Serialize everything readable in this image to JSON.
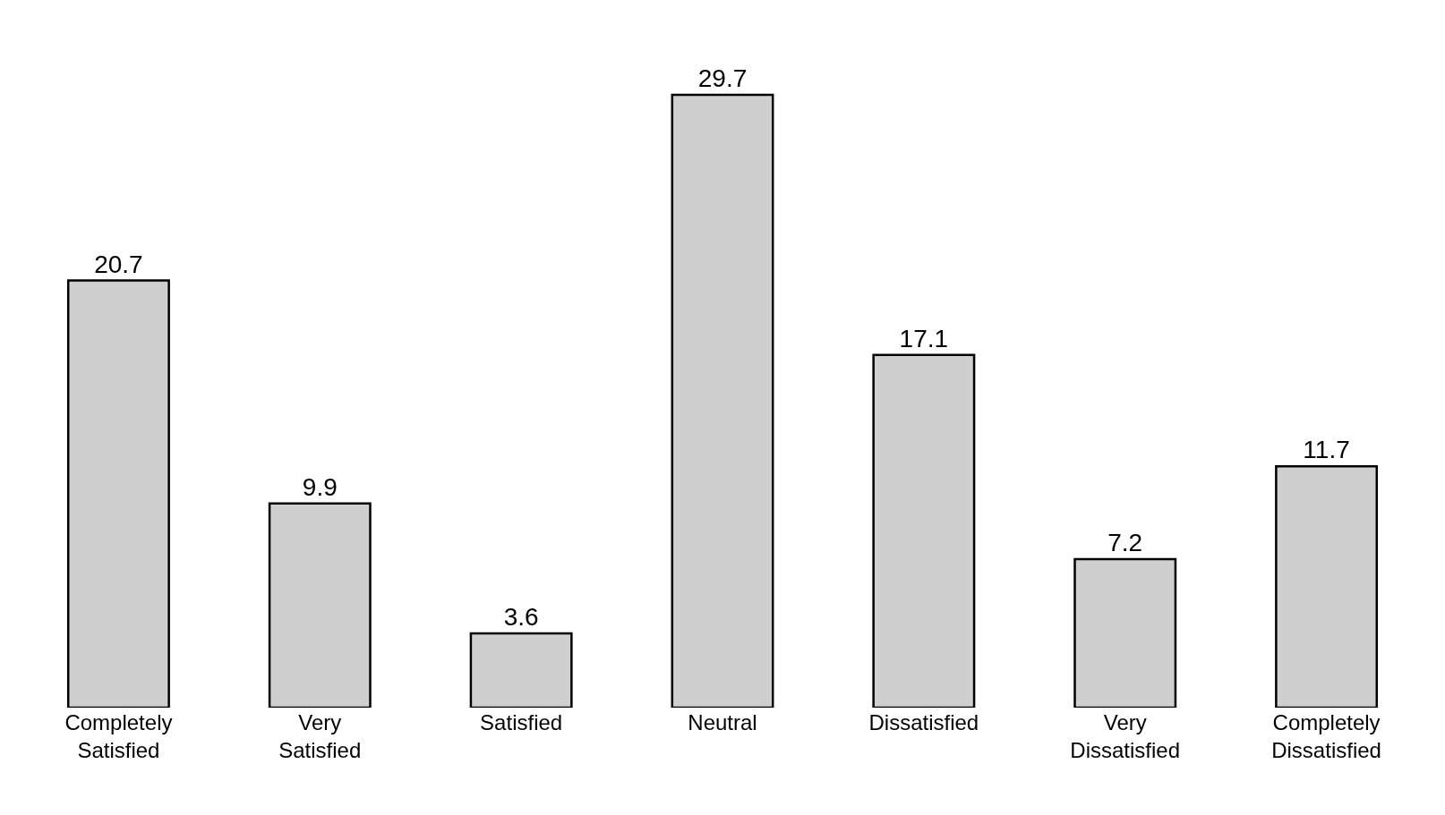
{
  "chart_data": {
    "type": "bar",
    "categories": [
      "Completely Satisfied",
      "Very Satisfied",
      "Satisfied",
      "Neutral",
      "Dissatisfied",
      "Very Dissatisfied",
      "Completely Dissatisfied"
    ],
    "values": [
      20.7,
      9.9,
      3.6,
      29.7,
      17.1,
      7.2,
      11.7
    ],
    "color": "#cfcfcf",
    "data_labels": true
  }
}
